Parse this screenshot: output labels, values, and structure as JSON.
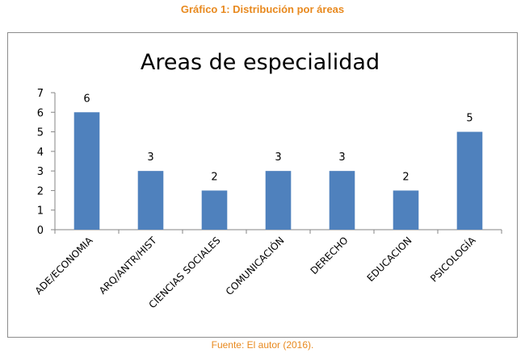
{
  "captions": {
    "top": "Gráfico 1: Distribución por áreas",
    "bottom": "Fuente: El autor (2016)."
  },
  "colors": {
    "caption": "#E8891E",
    "bar": "#4F81BD",
    "axis": "#868686"
  },
  "chart_data": {
    "type": "bar",
    "title": "Areas de especialidad",
    "xlabel": "",
    "ylabel": "",
    "categories": [
      "ADE/ECONOMIA",
      "ARQ/ANTR/HIST",
      "CIENCIAS SOCIALES",
      "COMUNICACIÓN",
      "DERECHO",
      "EDUCACION",
      "PSICOLOGÍA"
    ],
    "values": [
      6,
      3,
      2,
      3,
      3,
      2,
      5
    ],
    "ylim": [
      0,
      7
    ],
    "yticks": [
      0,
      1,
      2,
      3,
      4,
      5,
      6,
      7
    ],
    "grid": false,
    "legend": "none",
    "data_labels": true
  }
}
